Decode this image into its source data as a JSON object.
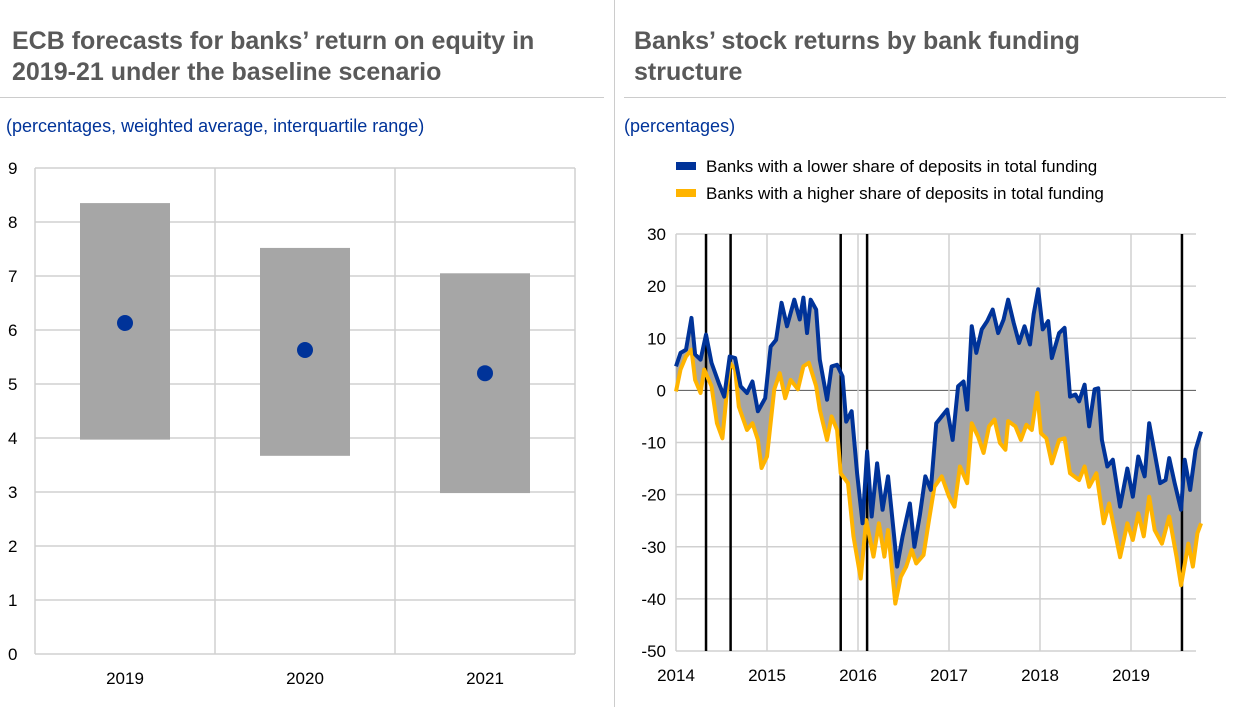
{
  "left": {
    "title": "ECB forecasts for banks’ return on equity in 2019-21 under the baseline scenario",
    "subtitle": "(percentages, weighted average, interquartile range)"
  },
  "right": {
    "title": "Banks’ stock returns by bank funding structure",
    "subtitle": "(percentages)"
  },
  "chart_data": [
    {
      "type": "bar",
      "categories": [
        "2019",
        "2020",
        "2021"
      ],
      "series": [
        {
          "kind": "range",
          "low": [
            3.97,
            3.67,
            2.98
          ],
          "high": [
            8.35,
            7.52,
            7.05
          ]
        },
        {
          "kind": "point",
          "values": [
            6.13,
            5.63,
            5.2
          ]
        }
      ],
      "ylim": [
        0,
        9
      ],
      "yticks": [
        0,
        1,
        2,
        3,
        4,
        5,
        6,
        7,
        8,
        9
      ],
      "grid": true,
      "colors": {
        "range": "#a6a6a6",
        "point": "#003399"
      }
    },
    {
      "type": "line",
      "ylim": [
        -50,
        30
      ],
      "yticks": [
        -50,
        -40,
        -30,
        -20,
        -10,
        0,
        10,
        20,
        30
      ],
      "xticks": [
        "2014",
        "2015",
        "2016",
        "2017",
        "2018",
        "2019"
      ],
      "grid": true,
      "legend_position": "top",
      "vertical_lines": [
        2014.33,
        2014.6,
        2015.81,
        2016.1,
        2019.56
      ],
      "fill_between": "#a6a6a6",
      "series": [
        {
          "name": "Banks with a lower share of deposits in total funding",
          "color": "#003399",
          "points": [
            [
              2014.0,
              4.6
            ],
            [
              2014.05,
              7.2
            ],
            [
              2014.11,
              7.8
            ],
            [
              2014.17,
              13.9
            ],
            [
              2014.21,
              6.9
            ],
            [
              2014.27,
              5.9
            ],
            [
              2014.33,
              10.7
            ],
            [
              2014.39,
              5.3
            ],
            [
              2014.47,
              1.4
            ],
            [
              2014.53,
              -1.2
            ],
            [
              2014.59,
              6.5
            ],
            [
              2014.65,
              6.2
            ],
            [
              2014.71,
              0.8
            ],
            [
              2014.78,
              -0.5
            ],
            [
              2014.84,
              1.7
            ],
            [
              2014.9,
              -4
            ],
            [
              2014.98,
              -1.5
            ],
            [
              2015.04,
              8.4
            ],
            [
              2015.1,
              9.7
            ],
            [
              2015.16,
              16.8
            ],
            [
              2015.22,
              12.3
            ],
            [
              2015.3,
              17.4
            ],
            [
              2015.36,
              13.6
            ],
            [
              2015.4,
              17.8
            ],
            [
              2015.44,
              11
            ],
            [
              2015.48,
              17.4
            ],
            [
              2015.54,
              15.5
            ],
            [
              2015.58,
              5.9
            ],
            [
              2015.66,
              -1.8
            ],
            [
              2015.71,
              4.6
            ],
            [
              2015.77,
              4.9
            ],
            [
              2015.83,
              2.7
            ],
            [
              2015.87,
              -6
            ],
            [
              2015.93,
              -4
            ],
            [
              2015.99,
              -15.9
            ],
            [
              2016.05,
              -25.5
            ],
            [
              2016.1,
              -11.7
            ],
            [
              2016.15,
              -24.2
            ],
            [
              2016.21,
              -14
            ],
            [
              2016.27,
              -22.9
            ],
            [
              2016.33,
              -16.5
            ],
            [
              2016.39,
              -26.8
            ],
            [
              2016.43,
              -33.8
            ],
            [
              2016.49,
              -28
            ],
            [
              2016.57,
              -21.7
            ],
            [
              2016.62,
              -30
            ],
            [
              2016.68,
              -23.9
            ],
            [
              2016.74,
              -16.5
            ],
            [
              2016.8,
              -19.1
            ],
            [
              2016.86,
              -6.3
            ],
            [
              2016.92,
              -5
            ],
            [
              2016.98,
              -3.7
            ],
            [
              2017.04,
              -9.5
            ],
            [
              2017.1,
              0.8
            ],
            [
              2017.16,
              1.7
            ],
            [
              2017.2,
              -3.7
            ],
            [
              2017.25,
              12.3
            ],
            [
              2017.3,
              7.2
            ],
            [
              2017.36,
              11.7
            ],
            [
              2017.42,
              13.3
            ],
            [
              2017.48,
              15.5
            ],
            [
              2017.54,
              11
            ],
            [
              2017.6,
              13.6
            ],
            [
              2017.65,
              17.4
            ],
            [
              2017.71,
              13
            ],
            [
              2017.77,
              9.1
            ],
            [
              2017.83,
              12.3
            ],
            [
              2017.89,
              8.8
            ],
            [
              2017.93,
              14.6
            ],
            [
              2017.98,
              19.4
            ],
            [
              2018.03,
              11.7
            ],
            [
              2018.09,
              13.3
            ],
            [
              2018.13,
              6.2
            ],
            [
              2018.21,
              11
            ],
            [
              2018.27,
              12
            ],
            [
              2018.33,
              -1.2
            ],
            [
              2018.39,
              -0.8
            ],
            [
              2018.43,
              -2.1
            ],
            [
              2018.49,
              1.1
            ],
            [
              2018.54,
              -6.9
            ],
            [
              2018.6,
              0.2
            ],
            [
              2018.64,
              0.4
            ],
            [
              2018.68,
              -9.5
            ],
            [
              2018.74,
              -14.6
            ],
            [
              2018.8,
              -13.3
            ],
            [
              2018.88,
              -22.3
            ],
            [
              2018.96,
              -15
            ],
            [
              2019.02,
              -20.4
            ],
            [
              2019.08,
              -12.7
            ],
            [
              2019.15,
              -16.5
            ],
            [
              2019.2,
              -6.3
            ],
            [
              2019.26,
              -12
            ],
            [
              2019.32,
              -17.8
            ],
            [
              2019.38,
              -17.2
            ],
            [
              2019.42,
              -13
            ],
            [
              2019.48,
              -17.8
            ],
            [
              2019.55,
              -22.9
            ],
            [
              2019.59,
              -13.3
            ],
            [
              2019.65,
              -19.1
            ],
            [
              2019.71,
              -11.4
            ],
            [
              2019.77,
              -7.9
            ]
          ]
        },
        {
          "name": "Banks with a higher share of deposits in total funding",
          "color": "#ffb400",
          "points": [
            [
              2014.0,
              -0.2
            ],
            [
              2014.05,
              4
            ],
            [
              2014.11,
              6.5
            ],
            [
              2014.17,
              7.8
            ],
            [
              2014.21,
              2
            ],
            [
              2014.27,
              -0.5
            ],
            [
              2014.31,
              4
            ],
            [
              2014.39,
              0.8
            ],
            [
              2014.45,
              -6.3
            ],
            [
              2014.51,
              -9.2
            ],
            [
              2014.59,
              5.3
            ],
            [
              2014.65,
              4
            ],
            [
              2014.69,
              -3.1
            ],
            [
              2014.78,
              -7.6
            ],
            [
              2014.84,
              -6.3
            ],
            [
              2014.9,
              -9.5
            ],
            [
              2014.94,
              -14.9
            ],
            [
              2015.0,
              -12.7
            ],
            [
              2015.08,
              0.2
            ],
            [
              2015.14,
              3.3
            ],
            [
              2015.2,
              -1.5
            ],
            [
              2015.26,
              2
            ],
            [
              2015.34,
              0.2
            ],
            [
              2015.4,
              4.6
            ],
            [
              2015.46,
              5.3
            ],
            [
              2015.54,
              0.8
            ],
            [
              2015.58,
              -3.7
            ],
            [
              2015.66,
              -9.5
            ],
            [
              2015.71,
              -5
            ],
            [
              2015.77,
              -7.6
            ],
            [
              2015.81,
              -15.9
            ],
            [
              2015.89,
              -17.8
            ],
            [
              2015.95,
              -28
            ],
            [
              2016.03,
              -36.1
            ],
            [
              2016.09,
              -24.9
            ],
            [
              2016.17,
              -31.9
            ],
            [
              2016.23,
              -25.5
            ],
            [
              2016.29,
              -31.9
            ],
            [
              2016.33,
              -26.8
            ],
            [
              2016.41,
              -40.9
            ],
            [
              2016.47,
              -35.8
            ],
            [
              2016.53,
              -33.8
            ],
            [
              2016.59,
              -30.6
            ],
            [
              2016.64,
              -33.2
            ],
            [
              2016.72,
              -31.6
            ],
            [
              2016.78,
              -24.9
            ],
            [
              2016.84,
              -18.5
            ],
            [
              2016.92,
              -16.5
            ],
            [
              2017.0,
              -20.4
            ],
            [
              2017.06,
              -22.3
            ],
            [
              2017.12,
              -14.6
            ],
            [
              2017.2,
              -17.8
            ],
            [
              2017.25,
              -6.3
            ],
            [
              2017.32,
              -8.9
            ],
            [
              2017.38,
              -12
            ],
            [
              2017.44,
              -6.9
            ],
            [
              2017.5,
              -5.6
            ],
            [
              2017.56,
              -10.1
            ],
            [
              2017.62,
              -11.4
            ],
            [
              2017.65,
              -5.9
            ],
            [
              2017.73,
              -6.9
            ],
            [
              2017.79,
              -9.5
            ],
            [
              2017.85,
              -6.6
            ],
            [
              2017.91,
              -7.6
            ],
            [
              2017.97,
              -0.5
            ],
            [
              2018.01,
              -8.2
            ],
            [
              2018.07,
              -9.2
            ],
            [
              2018.13,
              -14
            ],
            [
              2018.21,
              -9.5
            ],
            [
              2018.27,
              -9.2
            ],
            [
              2018.33,
              -15.9
            ],
            [
              2018.43,
              -17.2
            ],
            [
              2018.49,
              -14.6
            ],
            [
              2018.54,
              -18.5
            ],
            [
              2018.62,
              -15.9
            ],
            [
              2018.7,
              -25.5
            ],
            [
              2018.76,
              -21.7
            ],
            [
              2018.88,
              -32
            ],
            [
              2018.96,
              -25.5
            ],
            [
              2019.02,
              -28.7
            ],
            [
              2019.08,
              -23.6
            ],
            [
              2019.14,
              -28
            ],
            [
              2019.2,
              -20.4
            ],
            [
              2019.26,
              -26.8
            ],
            [
              2019.34,
              -29.4
            ],
            [
              2019.42,
              -24.2
            ],
            [
              2019.5,
              -31.9
            ],
            [
              2019.55,
              -37.4
            ],
            [
              2019.63,
              -29.4
            ],
            [
              2019.68,
              -33.8
            ],
            [
              2019.73,
              -27.4
            ],
            [
              2019.77,
              -25.5
            ]
          ]
        }
      ]
    }
  ]
}
